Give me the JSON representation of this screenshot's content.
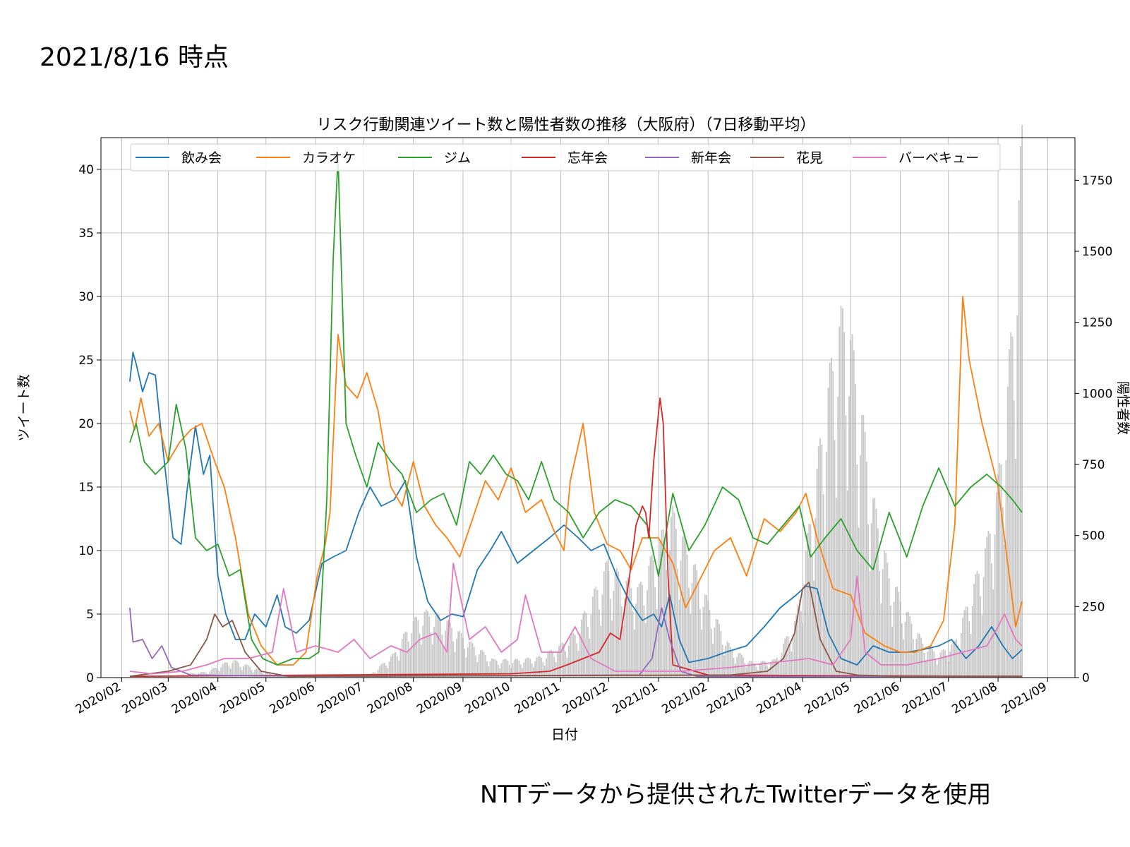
{
  "header": {
    "date_stamp": "2021/8/16 時点"
  },
  "footer": {
    "note": "NTTデータから提供されたTwitterデータを使用"
  },
  "chart_data": {
    "type": "line",
    "title": "リスク行動関連ツイート数と陽性者数の推移（大阪府）（7日移動平均）",
    "xlabel": "日付",
    "ylabel": "ツイート数",
    "ylabel_right": "陽性者数",
    "ylim": [
      0,
      42.5
    ],
    "ylim_right": [
      0,
      1900
    ],
    "yticks": [
      0,
      5,
      10,
      15,
      20,
      25,
      30,
      35,
      40
    ],
    "yticks_right": [
      0,
      250,
      500,
      750,
      1000,
      1250,
      1500,
      1750
    ],
    "x_months": [
      "2020/02",
      "2020/03",
      "2020/04",
      "2020/05",
      "2020/06",
      "2020/07",
      "2020/08",
      "2020/09",
      "2020/10",
      "2020/11",
      "2020/12",
      "2021/01",
      "2021/02",
      "2021/03",
      "2021/04",
      "2021/05",
      "2021/06",
      "2021/07",
      "2021/08",
      "2021/09"
    ],
    "grid": true,
    "legend_position": "top",
    "series_colors": [
      "#1f77b4",
      "#ff7f0e",
      "#2ca02c",
      "#d62728",
      "#9467bd",
      "#8c564b",
      "#e377c2"
    ],
    "bar_color": "#c8c8c8",
    "series": [
      {
        "name": "飲み会",
        "x": [
          "2020-02-06",
          "2020-02-08",
          "2020-02-10",
          "2020-02-14",
          "2020-02-18",
          "2020-02-22",
          "2020-02-25",
          "2020-02-28",
          "2020-03-04",
          "2020-03-09",
          "2020-03-13",
          "2020-03-18",
          "2020-03-23",
          "2020-03-27",
          "2020-04-01",
          "2020-04-06",
          "2020-04-12",
          "2020-04-18",
          "2020-04-24",
          "2020-05-01",
          "2020-05-08",
          "2020-05-13",
          "2020-05-20",
          "2020-05-28",
          "2020-06-05",
          "2020-06-12",
          "2020-06-20",
          "2020-06-28",
          "2020-07-05",
          "2020-07-12",
          "2020-07-20",
          "2020-07-27",
          "2020-08-03",
          "2020-08-10",
          "2020-08-18",
          "2020-08-25",
          "2020-09-01",
          "2020-09-10",
          "2020-09-18",
          "2020-09-25",
          "2020-10-05",
          "2020-10-15",
          "2020-10-25",
          "2020-11-03",
          "2020-11-12",
          "2020-11-20",
          "2020-11-28",
          "2020-12-06",
          "2020-12-14",
          "2020-12-22",
          "2020-12-29",
          "2021-01-03",
          "2021-01-08",
          "2021-01-14",
          "2021-01-20",
          "2021-02-01",
          "2021-02-12",
          "2021-02-25",
          "2021-03-08",
          "2021-03-18",
          "2021-03-28",
          "2021-04-03",
          "2021-04-10",
          "2021-04-17",
          "2021-04-25",
          "2021-05-05",
          "2021-05-15",
          "2021-05-25",
          "2021-06-05",
          "2021-06-15",
          "2021-06-25",
          "2021-07-03",
          "2021-07-12",
          "2021-07-20",
          "2021-07-28",
          "2021-08-04",
          "2021-08-10",
          "2021-08-16"
        ],
        "values": [
          23.3,
          25.6,
          24.7,
          22.5,
          24.0,
          23.8,
          20.0,
          16.5,
          11.0,
          10.5,
          15.0,
          19.8,
          16.0,
          17.5,
          8.0,
          5.0,
          3.0,
          3.0,
          5.0,
          4.0,
          6.5,
          4.0,
          3.5,
          4.5,
          9.0,
          9.5,
          10.0,
          13.0,
          15.0,
          13.5,
          14.0,
          15.5,
          9.5,
          6.0,
          4.5,
          5.0,
          4.8,
          8.5,
          10.0,
          11.5,
          9.0,
          10.0,
          11.0,
          12.0,
          11.0,
          10.0,
          10.5,
          8.0,
          6.0,
          4.5,
          5.0,
          4.0,
          6.5,
          3.0,
          1.2,
          1.5,
          2.0,
          2.5,
          4.0,
          5.5,
          6.5,
          7.2,
          7.0,
          3.5,
          1.5,
          1.0,
          2.5,
          2.0,
          2.0,
          2.2,
          2.5,
          3.0,
          1.5,
          2.5,
          4.0,
          2.5,
          1.5,
          2.2
        ]
      },
      {
        "name": "カラオケ",
        "x": [
          "2020-02-06",
          "2020-02-09",
          "2020-02-13",
          "2020-02-18",
          "2020-02-24",
          "2020-03-01",
          "2020-03-08",
          "2020-03-15",
          "2020-03-22",
          "2020-03-30",
          "2020-04-05",
          "2020-04-12",
          "2020-04-20",
          "2020-04-28",
          "2020-05-08",
          "2020-05-18",
          "2020-05-26",
          "2020-06-02",
          "2020-06-07",
          "2020-06-10",
          "2020-06-15",
          "2020-06-20",
          "2020-06-27",
          "2020-07-03",
          "2020-07-10",
          "2020-07-18",
          "2020-07-25",
          "2020-08-01",
          "2020-08-08",
          "2020-08-15",
          "2020-08-22",
          "2020-08-30",
          "2020-09-07",
          "2020-09-15",
          "2020-09-23",
          "2020-10-01",
          "2020-10-10",
          "2020-10-20",
          "2020-10-28",
          "2020-11-03",
          "2020-11-07",
          "2020-11-15",
          "2020-11-22",
          "2020-11-30",
          "2020-12-08",
          "2020-12-15",
          "2020-12-22",
          "2021-01-01",
          "2021-01-10",
          "2021-01-18",
          "2021-01-28",
          "2021-02-05",
          "2021-02-15",
          "2021-02-25",
          "2021-03-08",
          "2021-03-18",
          "2021-03-28",
          "2021-04-03",
          "2021-04-10",
          "2021-04-20",
          "2021-05-01",
          "2021-05-10",
          "2021-05-22",
          "2021-06-01",
          "2021-06-10",
          "2021-06-20",
          "2021-06-28",
          "2021-07-05",
          "2021-07-10",
          "2021-07-14",
          "2021-07-22",
          "2021-08-01",
          "2021-08-07",
          "2021-08-12",
          "2021-08-16"
        ],
        "values": [
          21.0,
          19.5,
          22.0,
          19.0,
          20.0,
          17.0,
          18.5,
          19.5,
          20.0,
          17.0,
          15.0,
          11.0,
          5.0,
          2.5,
          1.0,
          1.0,
          2.0,
          8.0,
          10.5,
          13.0,
          27.0,
          23.0,
          22.0,
          24.0,
          21.0,
          15.0,
          13.5,
          17.0,
          13.5,
          12.0,
          11.0,
          9.5,
          12.5,
          15.5,
          14.0,
          16.5,
          13.0,
          14.0,
          11.5,
          10.0,
          15.5,
          20.0,
          13.0,
          10.5,
          10.0,
          8.5,
          11.0,
          11.0,
          9.0,
          5.5,
          8.0,
          10.0,
          11.0,
          8.0,
          12.5,
          11.5,
          13.0,
          14.5,
          11.0,
          7.0,
          6.5,
          3.5,
          2.5,
          2.0,
          2.0,
          2.5,
          4.5,
          12.0,
          30.0,
          25.0,
          20.0,
          15.0,
          9.0,
          4.0,
          6.0
        ]
      },
      {
        "name": "ジム",
        "x": [
          "2020-02-06",
          "2020-02-10",
          "2020-02-15",
          "2020-02-22",
          "2020-03-01",
          "2020-03-06",
          "2020-03-12",
          "2020-03-18",
          "2020-03-25",
          "2020-04-01",
          "2020-04-08",
          "2020-04-15",
          "2020-04-22",
          "2020-04-29",
          "2020-05-08",
          "2020-05-18",
          "2020-05-28",
          "2020-06-03",
          "2020-06-08",
          "2020-06-12",
          "2020-06-15",
          "2020-06-20",
          "2020-06-26",
          "2020-07-03",
          "2020-07-10",
          "2020-07-18",
          "2020-07-25",
          "2020-08-03",
          "2020-08-12",
          "2020-08-20",
          "2020-08-28",
          "2020-09-05",
          "2020-09-12",
          "2020-09-20",
          "2020-09-28",
          "2020-10-05",
          "2020-10-12",
          "2020-10-20",
          "2020-10-28",
          "2020-11-06",
          "2020-11-15",
          "2020-11-25",
          "2020-12-05",
          "2020-12-15",
          "2020-12-25",
          "2021-01-01",
          "2021-01-10",
          "2021-01-20",
          "2021-01-30",
          "2021-02-10",
          "2021-02-20",
          "2021-03-01",
          "2021-03-10",
          "2021-03-20",
          "2021-03-30",
          "2021-04-06",
          "2021-04-15",
          "2021-04-25",
          "2021-05-05",
          "2021-05-15",
          "2021-05-25",
          "2021-06-05",
          "2021-06-15",
          "2021-06-25",
          "2021-07-05",
          "2021-07-15",
          "2021-07-25",
          "2021-08-03",
          "2021-08-10",
          "2021-08-16"
        ],
        "values": [
          18.5,
          20.0,
          17.0,
          16.0,
          17.0,
          21.5,
          18.0,
          11.0,
          10.0,
          10.5,
          8.0,
          8.5,
          3.0,
          1.5,
          1.0,
          1.5,
          1.5,
          2.0,
          14.0,
          33.0,
          41.0,
          20.0,
          17.5,
          15.0,
          18.5,
          17.0,
          16.0,
          13.0,
          14.0,
          14.5,
          12.0,
          17.0,
          16.0,
          17.5,
          16.0,
          15.5,
          14.0,
          17.0,
          14.0,
          13.0,
          11.0,
          13.0,
          14.0,
          13.5,
          12.0,
          8.0,
          14.5,
          10.0,
          12.0,
          15.0,
          14.0,
          11.0,
          10.5,
          12.0,
          13.5,
          9.5,
          11.0,
          12.5,
          10.0,
          8.5,
          13.0,
          9.5,
          13.5,
          16.5,
          13.5,
          15.0,
          16.0,
          15.0,
          14.0,
          13.0
        ]
      },
      {
        "name": "忘年会",
        "x": [
          "2020-02-06",
          "2020-06-01",
          "2020-10-01",
          "2020-10-25",
          "2020-11-05",
          "2020-11-15",
          "2020-11-25",
          "2020-12-02",
          "2020-12-08",
          "2020-12-14",
          "2020-12-18",
          "2020-12-22",
          "2020-12-24",
          "2020-12-26",
          "2020-12-29",
          "2021-01-02",
          "2021-01-04",
          "2021-01-07",
          "2021-01-10",
          "2021-02-01",
          "2021-08-16"
        ],
        "values": [
          0.1,
          0.2,
          0.3,
          0.5,
          1.0,
          1.5,
          2.0,
          3.5,
          3.0,
          8.0,
          12.0,
          13.5,
          13.0,
          11.0,
          17.0,
          22.0,
          20.0,
          8.0,
          1.0,
          0.2,
          0.1
        ]
      },
      {
        "name": "新年会",
        "x": [
          "2020-02-06",
          "2020-02-08",
          "2020-02-14",
          "2020-02-20",
          "2020-02-26",
          "2020-03-03",
          "2020-03-15",
          "2020-06-01",
          "2020-12-20",
          "2020-12-28",
          "2021-01-03",
          "2021-01-08",
          "2021-01-15",
          "2021-01-25",
          "2021-08-16"
        ],
        "values": [
          5.5,
          2.8,
          3.0,
          1.5,
          2.5,
          0.8,
          0.2,
          0.1,
          0.2,
          1.5,
          5.5,
          3.0,
          0.5,
          0.1,
          0.1
        ]
      },
      {
        "name": "花見",
        "x": [
          "2020-02-06",
          "2020-03-01",
          "2020-03-15",
          "2020-03-25",
          "2020-03-30",
          "2020-04-04",
          "2020-04-10",
          "2020-04-18",
          "2020-04-28",
          "2020-05-15",
          "2021-02-15",
          "2021-03-10",
          "2021-03-20",
          "2021-03-27",
          "2021-04-01",
          "2021-04-05",
          "2021-04-12",
          "2021-04-22",
          "2021-05-05",
          "2021-06-01",
          "2021-08-16"
        ],
        "values": [
          0.1,
          0.5,
          1.0,
          3.0,
          5.0,
          4.0,
          4.5,
          2.0,
          0.5,
          0.1,
          0.2,
          0.5,
          1.5,
          3.5,
          7.0,
          7.5,
          3.0,
          0.5,
          0.2,
          0.1,
          0.1
        ]
      },
      {
        "name": "バーベキュー",
        "x": [
          "2020-02-06",
          "2020-02-20",
          "2020-03-10",
          "2020-03-25",
          "2020-04-05",
          "2020-04-20",
          "2020-05-05",
          "2020-05-12",
          "2020-05-20",
          "2020-06-01",
          "2020-06-15",
          "2020-06-25",
          "2020-07-05",
          "2020-07-18",
          "2020-07-28",
          "2020-08-05",
          "2020-08-15",
          "2020-08-22",
          "2020-08-26",
          "2020-09-05",
          "2020-09-15",
          "2020-09-25",
          "2020-10-05",
          "2020-10-10",
          "2020-10-20",
          "2020-11-01",
          "2020-11-10",
          "2020-11-20",
          "2020-12-05",
          "2020-12-25",
          "2021-01-15",
          "2021-02-15",
          "2021-03-15",
          "2021-04-05",
          "2021-04-20",
          "2021-05-01",
          "2021-05-05",
          "2021-05-10",
          "2021-05-20",
          "2021-06-05",
          "2021-06-25",
          "2021-07-10",
          "2021-07-25",
          "2021-08-01",
          "2021-08-05",
          "2021-08-12",
          "2021-08-16"
        ],
        "values": [
          0.5,
          0.3,
          0.5,
          1.0,
          1.5,
          1.5,
          2.0,
          7.0,
          2.0,
          2.5,
          2.0,
          3.0,
          1.5,
          2.5,
          2.0,
          3.0,
          3.5,
          2.0,
          9.0,
          3.0,
          4.0,
          2.0,
          3.0,
          6.5,
          2.0,
          2.0,
          4.0,
          1.5,
          0.5,
          0.5,
          0.5,
          0.8,
          1.2,
          1.5,
          1.0,
          3.0,
          8.0,
          2.0,
          1.0,
          1.0,
          1.5,
          2.0,
          2.5,
          4.0,
          5.0,
          3.0,
          2.5
        ]
      }
    ],
    "bars": {
      "name": "陽性者数",
      "x": [
        "2020-02-06",
        "2020-03-01",
        "2020-03-25",
        "2020-04-10",
        "2020-04-20",
        "2020-05-05",
        "2020-05-20",
        "2020-06-15",
        "2020-07-05",
        "2020-07-20",
        "2020-07-30",
        "2020-08-08",
        "2020-08-20",
        "2020-09-05",
        "2020-09-20",
        "2020-10-05",
        "2020-10-20",
        "2020-11-01",
        "2020-11-10",
        "2020-11-20",
        "2020-11-30",
        "2020-12-10",
        "2020-12-20",
        "2021-01-01",
        "2021-01-10",
        "2021-01-20",
        "2021-02-01",
        "2021-02-15",
        "2021-03-01",
        "2021-03-15",
        "2021-03-28",
        "2021-04-05",
        "2021-04-15",
        "2021-04-22",
        "2021-04-28",
        "2021-05-05",
        "2021-05-15",
        "2021-05-25",
        "2021-06-05",
        "2021-06-15",
        "2021-06-25",
        "2021-07-05",
        "2021-07-15",
        "2021-07-25",
        "2021-08-01",
        "2021-08-06",
        "2021-08-10",
        "2021-08-14",
        "2021-08-16"
      ],
      "values": [
        0,
        5,
        20,
        60,
        40,
        10,
        2,
        2,
        10,
        80,
        180,
        220,
        200,
        120,
        60,
        60,
        70,
        110,
        150,
        260,
        380,
        330,
        300,
        450,
        550,
        420,
        250,
        100,
        50,
        60,
        200,
        500,
        900,
        1150,
        1230,
        1000,
        600,
        350,
        220,
        120,
        80,
        120,
        280,
        450,
        650,
        900,
        1200,
        1600,
        1800
      ]
    }
  }
}
